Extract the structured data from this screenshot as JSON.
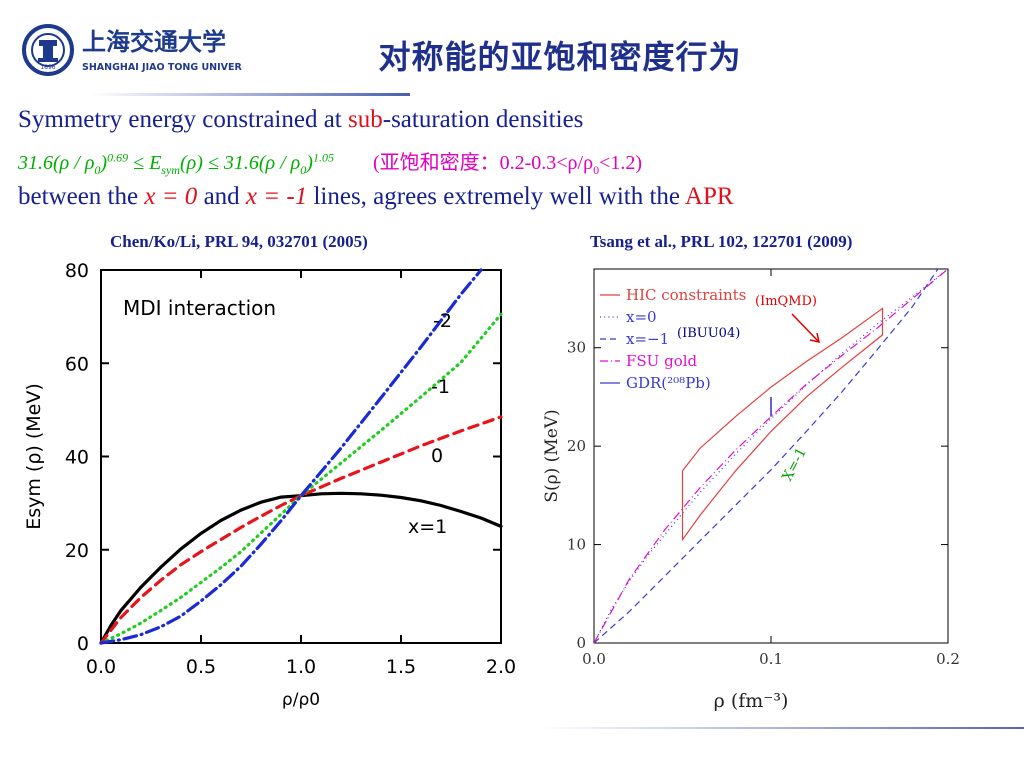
{
  "header": {
    "title": "对称能的亚饱和密度行为",
    "logo": {
      "chinese": "上海交通大学",
      "english": "SHANGHAI JIAO TONG UNIVERSITY",
      "seal_year": "1896"
    }
  },
  "text": {
    "line1_a": "Symmetry energy constrained at ",
    "line1_b": "sub",
    "line1_c": "-saturation densities",
    "line2_formula_left": "31.6(ρ / ρ",
    "line2_exp1": "0.69",
    "line2_mid": " ≤ E",
    "line2_sym": "sym",
    "line2_mid2": "(ρ) ≤  31.6(ρ / ρ",
    "line2_exp2": "1.05",
    "line2_sub0": "0",
    "line2_note": "(亚饱和密度：0.2-0.3<ρ/ρ",
    "line2_note_end": "<1.2)",
    "line3_a": "between the ",
    "line3_x0": "x = 0",
    "line3_b": " and ",
    "line3_xm1": "x = -1",
    "line3_c": " lines, agrees extremely well with the ",
    "line3_apr": "APR"
  },
  "citations": {
    "left": "Chen/Ko/Li, PRL 94, 032701 (2005)",
    "right": "Tsang et al., PRL 102, 122701 (2009)"
  },
  "chart_data": [
    {
      "type": "line",
      "title": "MDI interaction",
      "xlabel": "ρ/ρ0",
      "ylabel": "Esym (ρ) (MeV)",
      "xlim": [
        0.0,
        2.0
      ],
      "ylim": [
        0,
        80
      ],
      "xticks": [
        "0.0",
        "0.5",
        "1.0",
        "1.5",
        "2.0"
      ],
      "yticks": [
        "0",
        "20",
        "40",
        "60",
        "80"
      ],
      "series": [
        {
          "name": "x=1",
          "color": "#000000",
          "style": "solid",
          "x": [
            0,
            0.05,
            0.1,
            0.2,
            0.3,
            0.4,
            0.5,
            0.6,
            0.7,
            0.8,
            0.9,
            1.0,
            1.1,
            1.2,
            1.3,
            1.4,
            1.5,
            1.6,
            1.7,
            1.8,
            1.9,
            2.0
          ],
          "y": [
            0,
            3.8,
            7,
            12,
            16.3,
            20.2,
            23.5,
            26.3,
            28.5,
            30.2,
            31.3,
            31.6,
            32.0,
            32.1,
            32.0,
            31.7,
            31.2,
            30.5,
            29.5,
            28.2,
            26.8,
            25
          ]
        },
        {
          "name": "0",
          "color": "#e8141c",
          "style": "dashed",
          "x": [
            0,
            0.1,
            0.2,
            0.3,
            0.4,
            0.5,
            0.6,
            0.7,
            0.8,
            0.9,
            1.0,
            1.2,
            1.4,
            1.6,
            1.8,
            2.0
          ],
          "y": [
            0,
            5.5,
            9.8,
            13.5,
            16.8,
            19.6,
            22.2,
            24.8,
            27.2,
            29.5,
            31.6,
            35.3,
            38.8,
            42.3,
            45.5,
            48.5
          ]
        },
        {
          "name": "-1",
          "color": "#22cc22",
          "style": "dotted",
          "x": [
            0,
            0.1,
            0.2,
            0.3,
            0.4,
            0.5,
            0.6,
            0.7,
            0.8,
            0.9,
            1.0,
            1.2,
            1.4,
            1.6,
            1.8,
            2.0
          ],
          "y": [
            0,
            2.0,
            4.3,
            7.0,
            9.8,
            13.0,
            16.2,
            19.6,
            23.6,
            27.6,
            31.6,
            38.6,
            45.6,
            52.8,
            60.2,
            70.5
          ]
        },
        {
          "name": "-2",
          "color": "#1a2bd6",
          "style": "dashdot",
          "x": [
            0,
            0.1,
            0.2,
            0.3,
            0.4,
            0.5,
            0.6,
            0.7,
            0.8,
            0.9,
            1.0,
            1.2,
            1.4,
            1.6,
            1.8,
            1.9
          ],
          "y": [
            0,
            0.7,
            1.8,
            3.5,
            5.8,
            9.0,
            12.5,
            16.5,
            21.2,
            26.2,
            31.6,
            41.8,
            52.6,
            63.5,
            74.8,
            80
          ]
        }
      ]
    },
    {
      "type": "line",
      "xlabel": "ρ (fm⁻³)",
      "ylabel": "S(ρ) (MeV)",
      "xlim": [
        0.0,
        0.2
      ],
      "ylim": [
        0,
        38
      ],
      "xticks": [
        "0.0",
        "0.1",
        "0.2"
      ],
      "yticks": [
        "0",
        "10",
        "20",
        "30"
      ],
      "legend": [
        {
          "label": "HIC constraints",
          "color": "#e04040",
          "style": "solid"
        },
        {
          "label": "x=0",
          "color": "#3a3ad0",
          "style": "dotted"
        },
        {
          "label": "x=−1",
          "color": "#3a3ad0",
          "style": "dashed"
        },
        {
          "label": "FSU gold",
          "color": "#e010d0",
          "style": "dashdot"
        },
        {
          "label": "GDR(²⁰⁸Pb)",
          "color": "#3a3ad0",
          "style": "solid"
        }
      ],
      "annotations": {
        "imqmd": "(ImQMD)",
        "ibuu": "(IBUU04)",
        "xm1": "X=-1"
      },
      "series": [
        {
          "name": "x=0",
          "color": "#3a3ad0",
          "style": "dotted",
          "x": [
            0,
            0.01,
            0.02,
            0.03,
            0.04,
            0.05,
            0.06,
            0.08,
            0.1,
            0.12,
            0.14,
            0.16,
            0.18,
            0.2
          ],
          "y": [
            0,
            3.5,
            6.3,
            8.8,
            11.0,
            13.2,
            15.3,
            19.2,
            22.8,
            26.2,
            29.4,
            32.4,
            35.2,
            38.0
          ]
        },
        {
          "name": "x=−1",
          "color": "#3a3ad0",
          "style": "dashed",
          "x": [
            0,
            0.02,
            0.04,
            0.06,
            0.08,
            0.1,
            0.12,
            0.14,
            0.16,
            0.18,
            0.2
          ],
          "y": [
            0,
            3.2,
            6.8,
            10.4,
            14.0,
            17.6,
            21.5,
            25.5,
            29.8,
            34.2,
            39.5
          ]
        },
        {
          "name": "FSU gold",
          "color": "#e010d0",
          "style": "dashdot",
          "x": [
            0,
            0.02,
            0.04,
            0.06,
            0.08,
            0.1,
            0.12,
            0.14,
            0.16,
            0.18,
            0.2
          ],
          "y": [
            0,
            6.5,
            11.5,
            15.8,
            19.6,
            23.0,
            26.3,
            29.2,
            32.0,
            35.0,
            38.0
          ]
        },
        {
          "name": "HIC constraints",
          "color": "#e04040",
          "style": "solid",
          "x": [
            0.05,
            0.05,
            0.06,
            0.08,
            0.1,
            0.12,
            0.14,
            0.163,
            0.163,
            0.16,
            0.14,
            0.12,
            0.1,
            0.08,
            0.06,
            0.05
          ],
          "y": [
            17.5,
            10.5,
            13.0,
            17.5,
            21.5,
            25.0,
            28.0,
            31.3,
            34.0,
            33.6,
            31.0,
            28.6,
            26.0,
            23.0,
            19.8,
            17.5
          ]
        },
        {
          "name": "GDR(²⁰⁸Pb)",
          "color": "#3a3ad0",
          "style": "solid",
          "x": [
            0.1,
            0.1
          ],
          "y": [
            23.0,
            25.0
          ]
        }
      ]
    }
  ]
}
